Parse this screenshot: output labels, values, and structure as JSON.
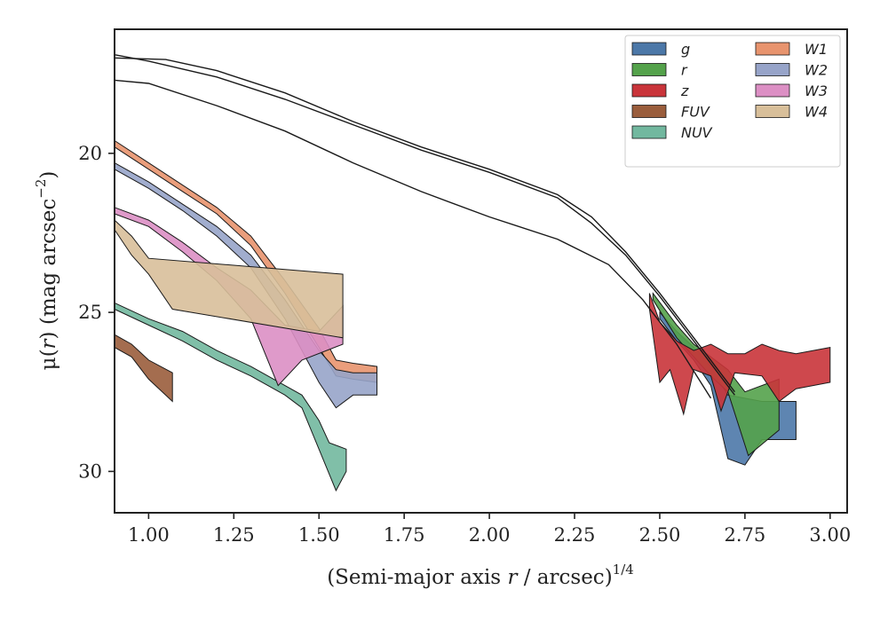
{
  "chart_data": {
    "type": "area",
    "title": "",
    "xlabel_main": "(Semi-major axis ",
    "xlabel_var": "r",
    "xlabel_rest": " / arcsec)",
    "xlabel_exp": "1/4",
    "ylabel_prefix": "μ(",
    "ylabel_var": "r",
    "ylabel_mid": ") (mag arcsec",
    "ylabel_exp": "−2",
    "ylabel_end": ")",
    "xlim": [
      0.9,
      3.05
    ],
    "ylim": [
      31.3,
      16.1
    ],
    "y_inverted": true,
    "grid": false,
    "legend_position": "top-right",
    "xticks": [
      1.0,
      1.25,
      1.5,
      1.75,
      2.0,
      2.25,
      2.5,
      2.75,
      3.0
    ],
    "xtick_labels": [
      "1.00",
      "1.25",
      "1.50",
      "1.75",
      "2.00",
      "2.25",
      "2.50",
      "2.75",
      "3.00"
    ],
    "yticks": [
      20,
      25,
      30
    ],
    "ytick_labels": [
      "20",
      "25",
      "30"
    ],
    "model_curves": [
      [
        [
          0.9,
          16.9
        ],
        [
          1.0,
          17.1
        ],
        [
          1.2,
          17.6
        ],
        [
          1.4,
          18.3
        ],
        [
          1.6,
          19.1
        ],
        [
          1.8,
          19.9
        ],
        [
          2.0,
          20.6
        ],
        [
          2.2,
          21.4
        ],
        [
          2.3,
          22.2
        ],
        [
          2.4,
          23.2
        ],
        [
          2.5,
          24.5
        ],
        [
          2.6,
          25.9
        ],
        [
          2.72,
          27.6
        ]
      ],
      [
        [
          0.9,
          17.0
        ],
        [
          1.05,
          17.05
        ],
        [
          1.2,
          17.4
        ],
        [
          1.4,
          18.1
        ],
        [
          1.6,
          19.0
        ],
        [
          1.8,
          19.8
        ],
        [
          2.0,
          20.5
        ],
        [
          2.2,
          21.3
        ],
        [
          2.3,
          22.0
        ],
        [
          2.4,
          23.1
        ],
        [
          2.5,
          24.4
        ],
        [
          2.6,
          25.8
        ],
        [
          2.72,
          27.5
        ]
      ],
      [
        [
          0.9,
          17.7
        ],
        [
          1.0,
          17.8
        ],
        [
          1.2,
          18.5
        ],
        [
          1.4,
          19.3
        ],
        [
          1.6,
          20.3
        ],
        [
          1.8,
          21.2
        ],
        [
          2.0,
          22.0
        ],
        [
          2.2,
          22.7
        ],
        [
          2.35,
          23.5
        ],
        [
          2.45,
          24.6
        ],
        [
          2.55,
          26.0
        ],
        [
          2.65,
          27.7
        ]
      ]
    ],
    "series": [
      {
        "name": "g",
        "color": "#4c78a8",
        "upper": [
          [
            2.5,
            25.0
          ],
          [
            2.55,
            25.6
          ],
          [
            2.6,
            26.1
          ],
          [
            2.65,
            26.7
          ],
          [
            2.7,
            27.6
          ],
          [
            2.8,
            27.8
          ],
          [
            2.9,
            27.8
          ]
        ],
        "lower": [
          [
            2.5,
            25.2
          ],
          [
            2.55,
            25.9
          ],
          [
            2.6,
            26.5
          ],
          [
            2.65,
            27.3
          ],
          [
            2.7,
            29.6
          ],
          [
            2.75,
            29.8
          ],
          [
            2.8,
            29.0
          ],
          [
            2.9,
            29.0
          ]
        ]
      },
      {
        "name": "r",
        "color": "#54a24b",
        "upper": [
          [
            2.48,
            24.4
          ],
          [
            2.55,
            25.4
          ],
          [
            2.6,
            26.0
          ],
          [
            2.65,
            26.4
          ],
          [
            2.7,
            26.8
          ],
          [
            2.75,
            27.5
          ],
          [
            2.85,
            27.1
          ]
        ],
        "lower": [
          [
            2.48,
            24.6
          ],
          [
            2.55,
            25.8
          ],
          [
            2.6,
            26.4
          ],
          [
            2.65,
            27.0
          ],
          [
            2.7,
            27.5
          ],
          [
            2.76,
            29.5
          ],
          [
            2.85,
            28.7
          ]
        ]
      },
      {
        "name": "z",
        "color": "#c9343a",
        "upper": [
          [
            2.47,
            24.4
          ],
          [
            2.5,
            25.3
          ],
          [
            2.55,
            25.9
          ],
          [
            2.6,
            26.2
          ],
          [
            2.65,
            26.0
          ],
          [
            2.7,
            26.3
          ],
          [
            2.75,
            26.3
          ],
          [
            2.8,
            26.0
          ],
          [
            2.85,
            26.2
          ],
          [
            2.9,
            26.3
          ],
          [
            3.0,
            26.1
          ]
        ],
        "lower": [
          [
            2.47,
            24.9
          ],
          [
            2.5,
            27.2
          ],
          [
            2.53,
            26.8
          ],
          [
            2.57,
            28.2
          ],
          [
            2.6,
            26.8
          ],
          [
            2.65,
            27.0
          ],
          [
            2.68,
            28.1
          ],
          [
            2.72,
            26.9
          ],
          [
            2.8,
            27.0
          ],
          [
            2.85,
            27.8
          ],
          [
            2.9,
            27.4
          ],
          [
            3.0,
            27.2
          ]
        ]
      },
      {
        "name": "FUV",
        "color": "#9a5d3c",
        "upper": [
          [
            0.9,
            25.7
          ],
          [
            0.95,
            26.0
          ],
          [
            1.0,
            26.5
          ],
          [
            1.07,
            26.9
          ]
        ],
        "lower": [
          [
            0.9,
            26.1
          ],
          [
            0.95,
            26.4
          ],
          [
            1.0,
            27.1
          ],
          [
            1.07,
            27.8
          ]
        ]
      },
      {
        "name": "NUV",
        "color": "#72b89f",
        "upper": [
          [
            0.9,
            24.7
          ],
          [
            1.0,
            25.2
          ],
          [
            1.1,
            25.6
          ],
          [
            1.2,
            26.2
          ],
          [
            1.3,
            26.7
          ],
          [
            1.4,
            27.3
          ],
          [
            1.45,
            27.6
          ],
          [
            1.5,
            28.4
          ],
          [
            1.53,
            29.1
          ],
          [
            1.58,
            29.3
          ]
        ],
        "lower": [
          [
            0.9,
            24.9
          ],
          [
            1.0,
            25.4
          ],
          [
            1.1,
            25.9
          ],
          [
            1.2,
            26.5
          ],
          [
            1.3,
            27.0
          ],
          [
            1.4,
            27.6
          ],
          [
            1.45,
            28.0
          ],
          [
            1.5,
            29.3
          ],
          [
            1.55,
            30.6
          ],
          [
            1.58,
            30.0
          ]
        ]
      },
      {
        "name": "W1",
        "color": "#e8946e",
        "upper": [
          [
            0.9,
            19.6
          ],
          [
            1.0,
            20.3
          ],
          [
            1.1,
            21.0
          ],
          [
            1.2,
            21.7
          ],
          [
            1.3,
            22.6
          ],
          [
            1.4,
            24.0
          ],
          [
            1.5,
            25.5
          ],
          [
            1.55,
            26.5
          ],
          [
            1.6,
            26.6
          ],
          [
            1.67,
            26.7
          ]
        ],
        "lower": [
          [
            0.9,
            19.8
          ],
          [
            1.0,
            20.5
          ],
          [
            1.1,
            21.2
          ],
          [
            1.2,
            21.9
          ],
          [
            1.3,
            22.9
          ],
          [
            1.4,
            24.4
          ],
          [
            1.5,
            26.1
          ],
          [
            1.55,
            27.0
          ],
          [
            1.6,
            27.1
          ],
          [
            1.67,
            27.2
          ]
        ]
      },
      {
        "name": "W2",
        "color": "#97a4c9",
        "upper": [
          [
            0.9,
            20.3
          ],
          [
            1.0,
            20.9
          ],
          [
            1.1,
            21.6
          ],
          [
            1.2,
            22.3
          ],
          [
            1.3,
            23.2
          ],
          [
            1.4,
            24.6
          ],
          [
            1.5,
            26.2
          ],
          [
            1.55,
            26.8
          ],
          [
            1.6,
            26.9
          ],
          [
            1.67,
            26.9
          ]
        ],
        "lower": [
          [
            0.9,
            20.5
          ],
          [
            1.0,
            21.1
          ],
          [
            1.1,
            21.8
          ],
          [
            1.2,
            22.6
          ],
          [
            1.3,
            23.6
          ],
          [
            1.4,
            25.2
          ],
          [
            1.5,
            27.2
          ],
          [
            1.55,
            28.0
          ],
          [
            1.6,
            27.6
          ],
          [
            1.67,
            27.6
          ]
        ]
      },
      {
        "name": "W3",
        "color": "#dc8fc4",
        "upper": [
          [
            0.9,
            21.7
          ],
          [
            1.0,
            22.1
          ],
          [
            1.1,
            22.8
          ],
          [
            1.2,
            23.6
          ],
          [
            1.3,
            24.3
          ],
          [
            1.4,
            25.4
          ],
          [
            1.5,
            25.6
          ],
          [
            1.57,
            24.8
          ]
        ],
        "lower": [
          [
            0.9,
            21.9
          ],
          [
            1.0,
            22.3
          ],
          [
            1.1,
            23.1
          ],
          [
            1.2,
            24.0
          ],
          [
            1.3,
            25.2
          ],
          [
            1.38,
            27.3
          ],
          [
            1.45,
            26.5
          ],
          [
            1.57,
            26.0
          ]
        ]
      },
      {
        "name": "W4",
        "color": "#d8bf9a",
        "upper": [
          [
            0.9,
            22.1
          ],
          [
            0.95,
            22.6
          ],
          [
            1.0,
            23.3
          ],
          [
            1.57,
            23.8
          ]
        ],
        "lower": [
          [
            0.9,
            22.4
          ],
          [
            0.95,
            23.2
          ],
          [
            1.0,
            23.8
          ],
          [
            1.07,
            24.9
          ],
          [
            1.57,
            25.8
          ]
        ]
      }
    ]
  }
}
